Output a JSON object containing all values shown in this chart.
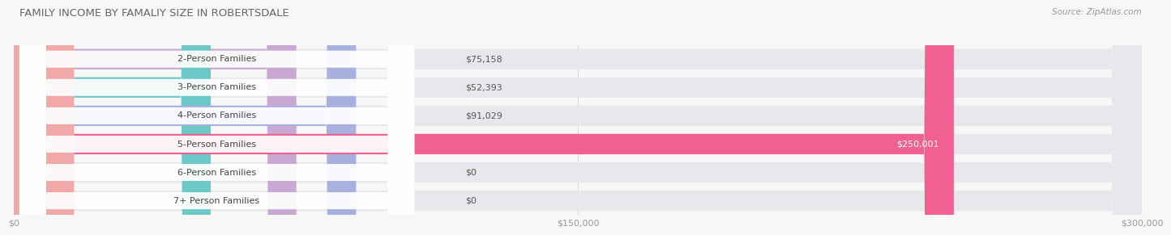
{
  "title": "FAMILY INCOME BY FAMALIY SIZE IN ROBERTSDALE",
  "source": "Source: ZipAtlas.com",
  "categories": [
    "2-Person Families",
    "3-Person Families",
    "4-Person Families",
    "5-Person Families",
    "6-Person Families",
    "7+ Person Families"
  ],
  "values": [
    75158,
    52393,
    91029,
    250001,
    0,
    0
  ],
  "value_labels": [
    "$75,158",
    "$52,393",
    "$91,029",
    "$250,001",
    "$0",
    "$0"
  ],
  "bar_colors": [
    "#c9a8d4",
    "#6dc8c8",
    "#a8b0de",
    "#f06090",
    "#f5c8a0",
    "#f0a8a8"
  ],
  "bar_bg_color": "#e8e8ec",
  "xlim_max": 300000,
  "xtick_labels": [
    "$0",
    "$150,000",
    "$300,000"
  ],
  "fig_bg_color": "#f7f7f7",
  "title_fontsize": 9.5,
  "label_fontsize": 8,
  "value_fontsize": 8
}
